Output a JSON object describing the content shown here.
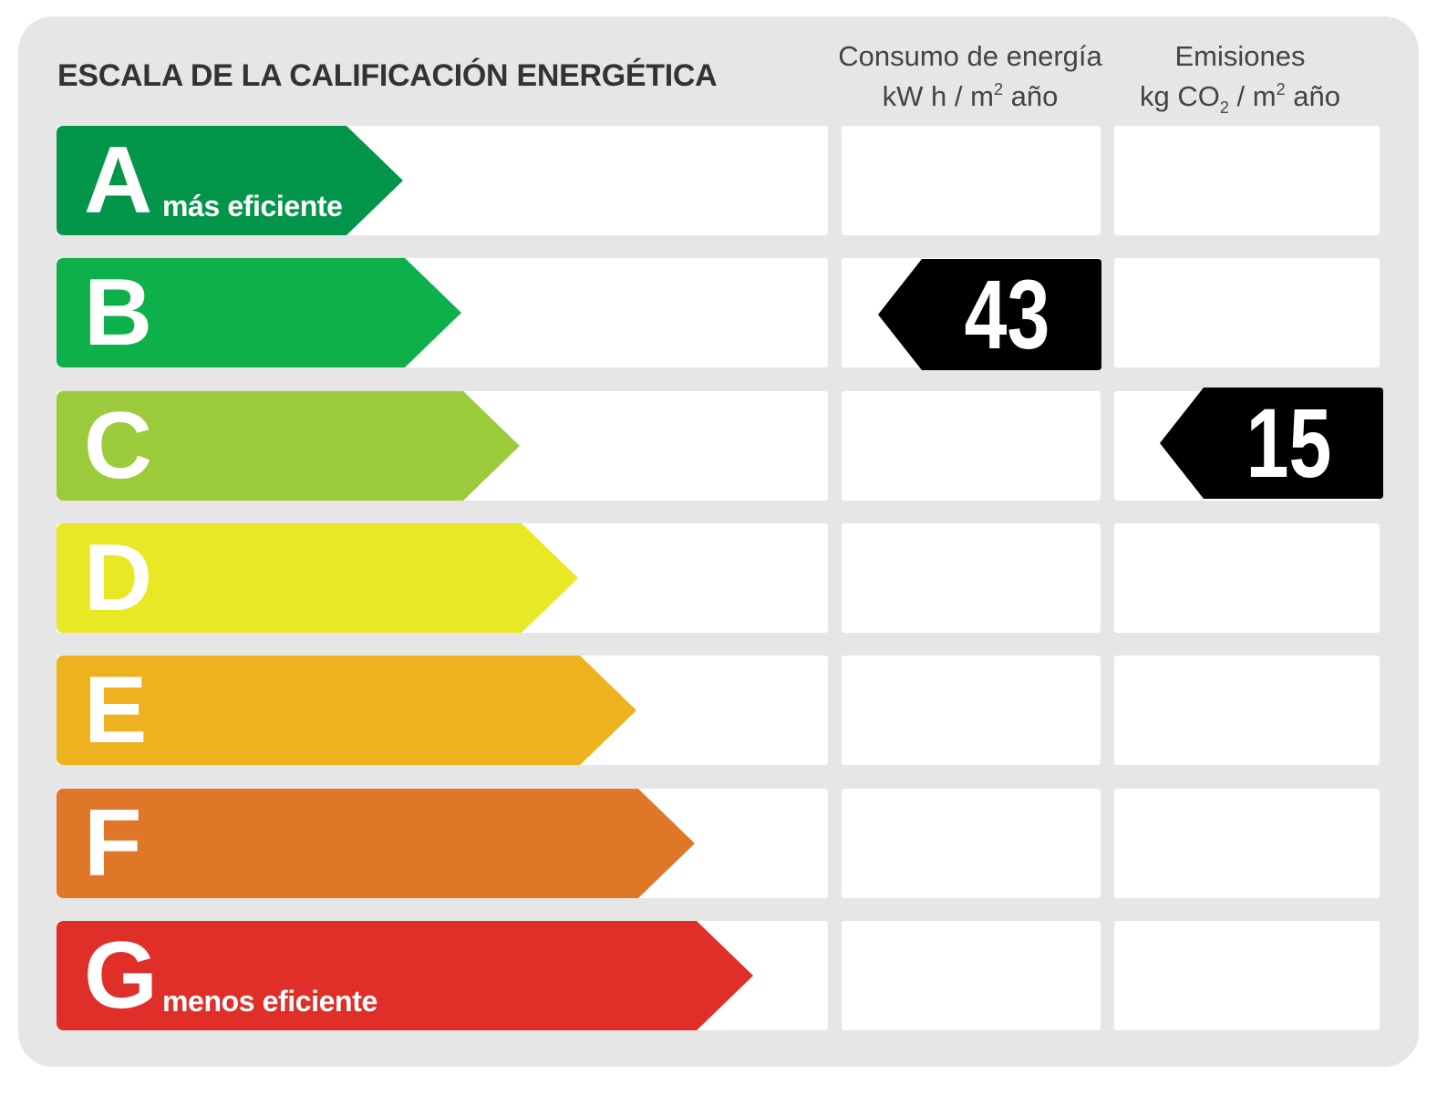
{
  "title": "ESCALA DE LA CALIFICACIÓN ENERGÉTICA",
  "columns": {
    "consumo": {
      "heading": "Consumo de energía",
      "unit_prefix": "kW h  / m",
      "unit_sup": "2",
      "unit_suffix": " año"
    },
    "emisiones": {
      "heading": "Emisiones",
      "unit_prefix": "kg CO",
      "unit_sub": "2",
      "unit_mid": "  / m",
      "unit_sup": "2",
      "unit_suffix": " año"
    }
  },
  "classes": [
    {
      "letter": "A",
      "caption": "más eficiente",
      "color": "#03954a"
    },
    {
      "letter": "B",
      "caption": "",
      "color": "#0db04b"
    },
    {
      "letter": "C",
      "caption": "",
      "color": "#9bca3b"
    },
    {
      "letter": "D",
      "caption": "",
      "color": "#e8e825"
    },
    {
      "letter": "E",
      "caption": "",
      "color": "#eeb21f"
    },
    {
      "letter": "F",
      "caption": "",
      "color": "#e07627"
    },
    {
      "letter": "G",
      "caption": "menos eficiente",
      "color": "#e02e28"
    }
  ],
  "ratings": {
    "consumo": {
      "value": "43",
      "class": "B"
    },
    "emisiones": {
      "value": "15",
      "class": "C"
    }
  },
  "marker_color": "#000000"
}
